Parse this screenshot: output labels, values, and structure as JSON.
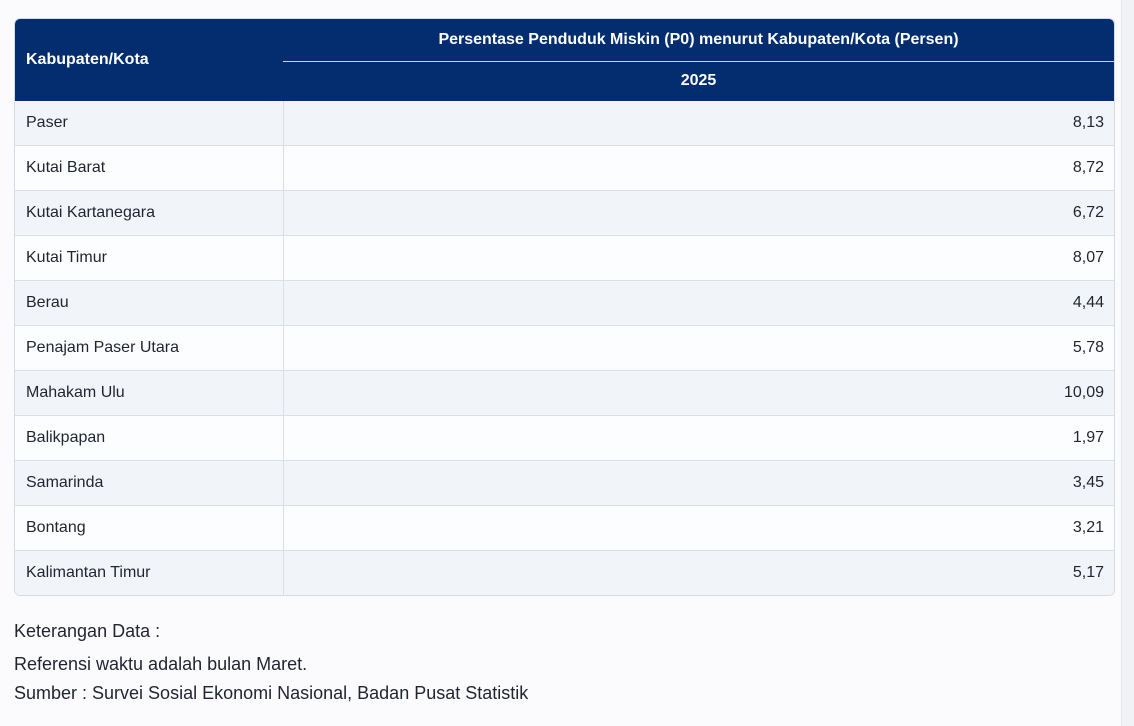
{
  "table": {
    "header": {
      "region_col": "Kabupaten/Kota",
      "indicator_title": "Persentase Penduduk Miskin (P0) menurut Kabupaten/Kota (Persen)",
      "year": "2025"
    },
    "rows": [
      {
        "name": "Paser",
        "value": "8,13"
      },
      {
        "name": "Kutai Barat",
        "value": "8,72"
      },
      {
        "name": "Kutai Kartanegara",
        "value": "6,72"
      },
      {
        "name": "Kutai Timur",
        "value": "8,07"
      },
      {
        "name": "Berau",
        "value": "4,44"
      },
      {
        "name": "Penajam Paser Utara",
        "value": "5,78"
      },
      {
        "name": "Mahakam Ulu",
        "value": "10,09"
      },
      {
        "name": "Balikpapan",
        "value": "1,97"
      },
      {
        "name": "Samarinda",
        "value": "3,45"
      },
      {
        "name": "Bontang",
        "value": "3,21"
      },
      {
        "name": "Kalimantan Timur",
        "value": "5,17"
      }
    ]
  },
  "notes": {
    "heading": "Keterangan Data :",
    "lines": [
      "Referensi waktu adalah bulan Maret.",
      "Sumber : Survei Sosial Ekonomi Nasional, Badan Pusat Statistik"
    ]
  },
  "colors": {
    "header_bg": "#032d6e",
    "row_odd_bg": "#f1f4f9",
    "row_even_bg": "#fcfdfe"
  }
}
